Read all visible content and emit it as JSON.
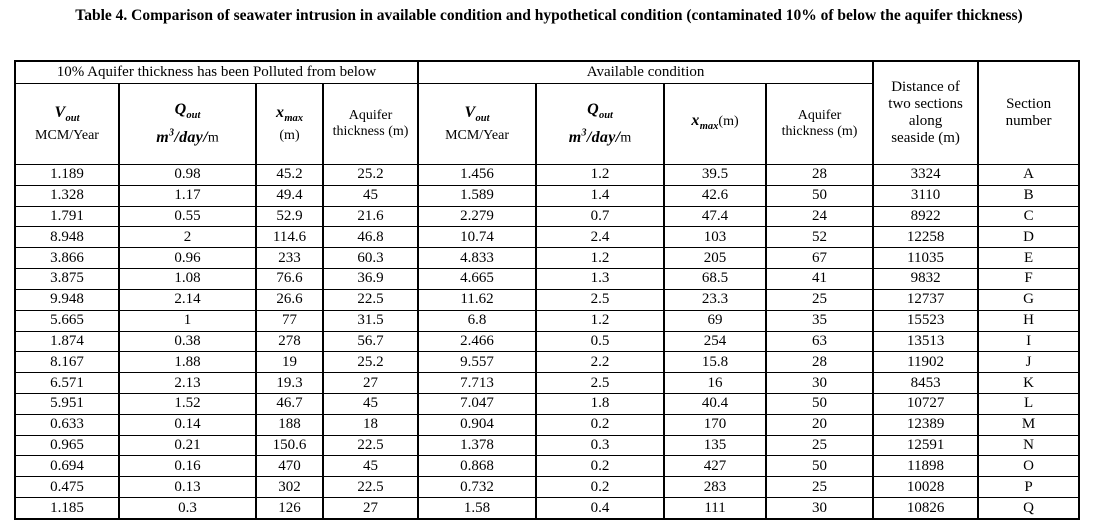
{
  "title": "Table 4. Comparison of seawater intrusion in available condition and hypothetical condition (contaminated 10% of below the aquifer thickness)",
  "table": {
    "group_headers": {
      "polluted": "10% Aquifer thickness has been Polluted from below",
      "available": "Available condition",
      "distance": "Distance of two sections along seaside (m)",
      "section": "Section number"
    },
    "headers": {
      "v_sym": "V",
      "v_sub": "out",
      "v_unit": "MCM/Year",
      "q_sym": "Q",
      "q_sub": "out",
      "q_unit_m": "m",
      "q_unit_sup": "3",
      "q_unit_rest": "/day/",
      "q_unit_tail": "m",
      "x_sym": "x",
      "x_sub": "max",
      "x_unit": "(m)",
      "aquifer": "Aquifer thickness (m)"
    },
    "rows": [
      [
        "1.189",
        "0.98",
        "45.2",
        "25.2",
        "1.456",
        "1.2",
        "39.5",
        "28",
        "3324",
        "A"
      ],
      [
        "1.328",
        "1.17",
        "49.4",
        "45",
        "1.589",
        "1.4",
        "42.6",
        "50",
        "3110",
        "B"
      ],
      [
        "1.791",
        "0.55",
        "52.9",
        "21.6",
        "2.279",
        "0.7",
        "47.4",
        "24",
        "8922",
        "C"
      ],
      [
        "8.948",
        "2",
        "114.6",
        "46.8",
        "10.74",
        "2.4",
        "103",
        "52",
        "12258",
        "D"
      ],
      [
        "3.866",
        "0.96",
        "233",
        "60.3",
        "4.833",
        "1.2",
        "205",
        "67",
        "11035",
        "E"
      ],
      [
        "3.875",
        "1.08",
        "76.6",
        "36.9",
        "4.665",
        "1.3",
        "68.5",
        "41",
        "9832",
        "F"
      ],
      [
        "9.948",
        "2.14",
        "26.6",
        "22.5",
        "11.62",
        "2.5",
        "23.3",
        "25",
        "12737",
        "G"
      ],
      [
        "5.665",
        "1",
        "77",
        "31.5",
        "6.8",
        "1.2",
        "69",
        "35",
        "15523",
        "H"
      ],
      [
        "1.874",
        "0.38",
        "278",
        "56.7",
        "2.466",
        "0.5",
        "254",
        "63",
        "13513",
        "I"
      ],
      [
        "8.167",
        "1.88",
        "19",
        "25.2",
        "9.557",
        "2.2",
        "15.8",
        "28",
        "11902",
        "J"
      ],
      [
        "6.571",
        "2.13",
        "19.3",
        "27",
        "7.713",
        "2.5",
        "16",
        "30",
        "8453",
        "K"
      ],
      [
        "5.951",
        "1.52",
        "46.7",
        "45",
        "7.047",
        "1.8",
        "40.4",
        "50",
        "10727",
        "L"
      ],
      [
        "0.633",
        "0.14",
        "188",
        "18",
        "0.904",
        "0.2",
        "170",
        "20",
        "12389",
        "M"
      ],
      [
        "0.965",
        "0.21",
        "150.6",
        "22.5",
        "1.378",
        "0.3",
        "135",
        "25",
        "12591",
        "N"
      ],
      [
        "0.694",
        "0.16",
        "470",
        "45",
        "0.868",
        "0.2",
        "427",
        "50",
        "11898",
        "O"
      ],
      [
        "0.475",
        "0.13",
        "302",
        "22.5",
        "0.732",
        "0.2",
        "283",
        "25",
        "10028",
        "P"
      ],
      [
        "1.185",
        "0.3",
        "126",
        "27",
        "1.58",
        "0.4",
        "111",
        "30",
        "10826",
        "Q"
      ]
    ]
  }
}
